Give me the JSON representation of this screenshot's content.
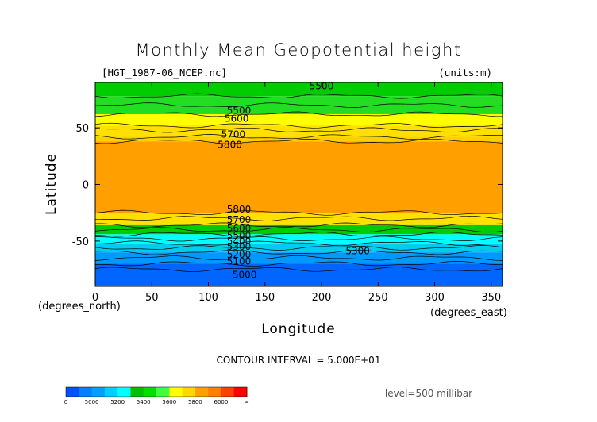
{
  "header": {
    "title": "Monthly Mean Geopotential height",
    "file": "[HGT_1987-06_NCEP.nc]",
    "units": "(units:m)"
  },
  "footer": {
    "contour_interval": "CONTOUR INTERVAL = 5.000E+01",
    "level": "level=500 millibar"
  },
  "chart_data": {
    "type": "heatmap",
    "title": "Monthly Mean Geopotential height",
    "xlabel": "Longitude",
    "ylabel": "Latitude",
    "x_unit": "(degrees_east)",
    "y_unit": "(degrees_north)",
    "xlim": [
      0,
      360
    ],
    "ylim": [
      -90,
      90
    ],
    "x_ticks": [
      0,
      50,
      100,
      150,
      200,
      250,
      300,
      350
    ],
    "y_ticks": [
      50,
      0,
      -50
    ],
    "contour_interval": 50,
    "bands": [
      {
        "lat": [
          90,
          78
        ],
        "value": 5500,
        "color": "#00cc00"
      },
      {
        "lat": [
          78,
          62
        ],
        "value": 5550,
        "color": "#22dd22"
      },
      {
        "lat": [
          62,
          52
        ],
        "value": 5650,
        "color": "#ffff00"
      },
      {
        "lat": [
          52,
          42
        ],
        "value": 5750,
        "color": "#ffe000"
      },
      {
        "lat": [
          42,
          38
        ],
        "value": 5800,
        "color": "#ffd000"
      },
      {
        "lat": [
          38,
          -25
        ],
        "value": 5850,
        "color": "#ffa000"
      },
      {
        "lat": [
          -25,
          -36
        ],
        "value": 5750,
        "color": "#ffe000"
      },
      {
        "lat": [
          -36,
          -44
        ],
        "value": 5600,
        "color": "#00cc00"
      },
      {
        "lat": [
          -44,
          -52
        ],
        "value": 5450,
        "color": "#00ffff"
      },
      {
        "lat": [
          -52,
          -60
        ],
        "value": 5300,
        "color": "#00ccee"
      },
      {
        "lat": [
          -60,
          -70
        ],
        "value": 5150,
        "color": "#0099ff"
      },
      {
        "lat": [
          -70,
          -90
        ],
        "value": 5000,
        "color": "#0066ff"
      }
    ],
    "contour_labels": [
      {
        "text": "5500",
        "lon": 200,
        "lat": 87
      },
      {
        "text": "5500",
        "lon": 127,
        "lat": 65
      },
      {
        "text": "5600",
        "lon": 125,
        "lat": 58
      },
      {
        "text": "5700",
        "lon": 122,
        "lat": 44
      },
      {
        "text": "5800",
        "lon": 119,
        "lat": 35
      },
      {
        "text": "5800",
        "lon": 127,
        "lat": -22
      },
      {
        "text": "5700",
        "lon": 127,
        "lat": -31
      },
      {
        "text": "5600",
        "lon": 127,
        "lat": -39
      },
      {
        "text": "5500",
        "lon": 127,
        "lat": -45
      },
      {
        "text": "5400",
        "lon": 127,
        "lat": -50
      },
      {
        "text": "5300",
        "lon": 127,
        "lat": -55
      },
      {
        "text": "5200",
        "lon": 127,
        "lat": -62
      },
      {
        "text": "5100",
        "lon": 127,
        "lat": -68
      },
      {
        "text": "5300",
        "lon": 232,
        "lat": -59
      },
      {
        "text": "5000",
        "lon": 132,
        "lat": -80
      }
    ],
    "colorbar": {
      "labels": [
        "0",
        "5000",
        "5200",
        "5400",
        "5600",
        "5800",
        "6000",
        "∞"
      ],
      "colors": [
        "#0050ff",
        "#0080ff",
        "#00a0ff",
        "#00d0ff",
        "#00ffff",
        "#00c000",
        "#00e000",
        "#40ff40",
        "#ffff00",
        "#ffd800",
        "#ffa000",
        "#ff8000",
        "#ff4000",
        "#ff0000"
      ]
    }
  }
}
